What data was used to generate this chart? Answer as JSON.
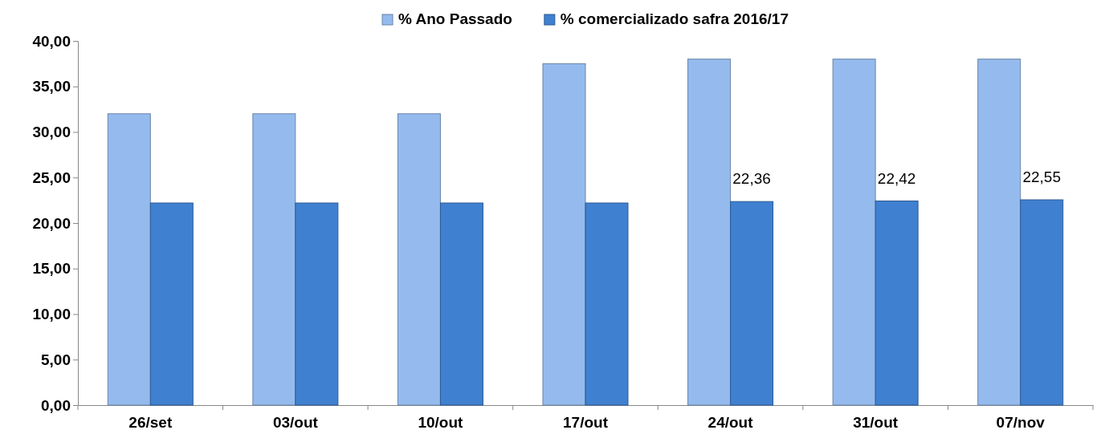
{
  "chart_data": {
    "type": "bar",
    "categories": [
      "26/set",
      "03/out",
      "10/out",
      "17/out",
      "24/out",
      "31/out",
      "07/nov"
    ],
    "series": [
      {
        "name": "% Ano Passado",
        "color": "#95bbee",
        "values": [
          32,
          32,
          32,
          37.5,
          38,
          38,
          38
        ]
      },
      {
        "name": "% comercializado safra 2016/17",
        "color": "#3f80d0",
        "values": [
          22.2,
          22.2,
          22.2,
          22.2,
          22.36,
          22.42,
          22.55
        ],
        "value_labels": [
          null,
          null,
          null,
          null,
          "22,36",
          "22,42",
          "22,55"
        ]
      }
    ],
    "ylim": [
      0,
      40
    ],
    "yticks": [
      {
        "value": 0,
        "label": "0,00"
      },
      {
        "value": 5,
        "label": "5,00"
      },
      {
        "value": 10,
        "label": "10,00"
      },
      {
        "value": 15,
        "label": "15,00"
      },
      {
        "value": 20,
        "label": "20,00"
      },
      {
        "value": 25,
        "label": "25,00"
      },
      {
        "value": 30,
        "label": "30,00"
      },
      {
        "value": 35,
        "label": "35,00"
      },
      {
        "value": 40,
        "label": "40,00"
      }
    ],
    "grid": false,
    "legend": "top"
  }
}
